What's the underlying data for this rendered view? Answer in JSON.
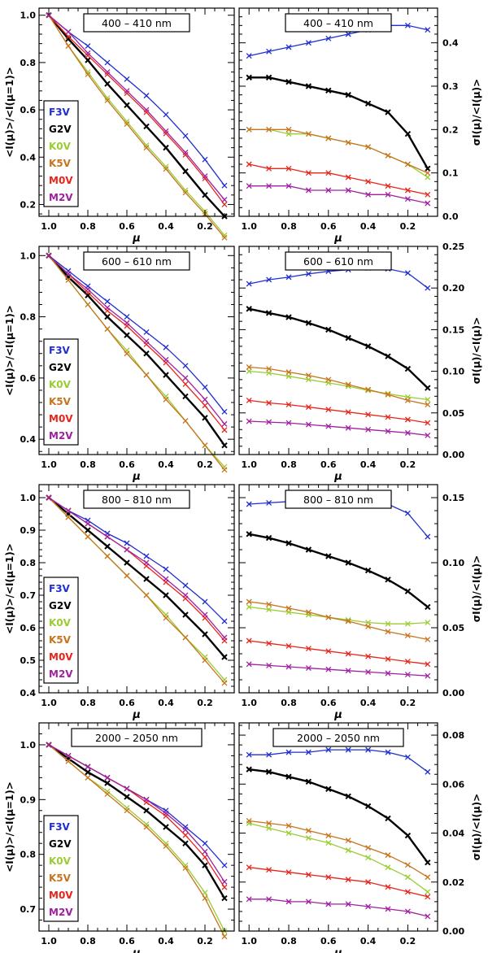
{
  "stars": [
    {
      "name": "F3V",
      "color": "#1f2fd0",
      "bold": false
    },
    {
      "name": "G2V",
      "color": "#000000",
      "bold": true
    },
    {
      "name": "K0V",
      "color": "#9acd32",
      "bold": false
    },
    {
      "name": "K5V",
      "color": "#c8741f",
      "bold": false
    },
    {
      "name": "M0V",
      "color": "#e8251a",
      "bold": false
    },
    {
      "name": "M2V",
      "color": "#a020a0",
      "bold": false
    }
  ],
  "mu_label": "μ",
  "left_ylabel": "<I(μ)>/<I(μ=1)>",
  "right_ylabel": "σI(μ)/<I(μ)>",
  "chart_data": [
    {
      "type": "line",
      "band": "400 – 410 nm",
      "panel": "mean-limb-darkening",
      "x": [
        1.0,
        0.9,
        0.8,
        0.7,
        0.6,
        0.5,
        0.4,
        0.3,
        0.2,
        0.1
      ],
      "xlim": [
        1.05,
        0.05
      ],
      "ylim": [
        0.15,
        1.03
      ],
      "xticks": [
        1.0,
        0.8,
        0.6,
        0.4,
        0.2
      ],
      "yticks": [
        0.2,
        0.4,
        0.6,
        0.8,
        1.0
      ],
      "series": [
        {
          "name": "F3V",
          "values": [
            1.0,
            0.93,
            0.87,
            0.8,
            0.73,
            0.66,
            0.58,
            0.49,
            0.39,
            0.28
          ]
        },
        {
          "name": "G2V",
          "values": [
            1.0,
            0.9,
            0.81,
            0.71,
            0.62,
            0.53,
            0.44,
            0.34,
            0.24,
            0.15
          ]
        },
        {
          "name": "K0V",
          "values": [
            1.0,
            0.87,
            0.76,
            0.65,
            0.55,
            0.45,
            0.36,
            0.26,
            0.17,
            0.07
          ]
        },
        {
          "name": "K5V",
          "values": [
            1.0,
            0.87,
            0.75,
            0.64,
            0.54,
            0.44,
            0.35,
            0.25,
            0.16,
            0.06
          ]
        },
        {
          "name": "M0V",
          "values": [
            1.0,
            0.91,
            0.83,
            0.75,
            0.67,
            0.59,
            0.5,
            0.41,
            0.31,
            0.2
          ]
        },
        {
          "name": "M2V",
          "values": [
            1.0,
            0.93,
            0.84,
            0.76,
            0.68,
            0.6,
            0.51,
            0.42,
            0.32,
            0.22
          ]
        }
      ]
    },
    {
      "type": "line",
      "band": "400 – 410 nm",
      "panel": "intensity-contrast",
      "x": [
        1.0,
        0.9,
        0.8,
        0.7,
        0.6,
        0.5,
        0.4,
        0.3,
        0.2,
        0.1
      ],
      "xlim": [
        1.05,
        0.05
      ],
      "ylim": [
        0.0,
        0.48
      ],
      "xticks": [
        1.0,
        0.8,
        0.6,
        0.4,
        0.2
      ],
      "yticks": [
        0.0,
        0.1,
        0.2,
        0.3,
        0.4
      ],
      "series": [
        {
          "name": "F3V",
          "values": [
            0.37,
            0.38,
            0.39,
            0.4,
            0.41,
            0.42,
            0.43,
            0.44,
            0.44,
            0.43
          ]
        },
        {
          "name": "G2V",
          "values": [
            0.32,
            0.32,
            0.31,
            0.3,
            0.29,
            0.28,
            0.26,
            0.24,
            0.19,
            0.11
          ]
        },
        {
          "name": "K0V",
          "values": [
            0.2,
            0.2,
            0.19,
            0.19,
            0.18,
            0.17,
            0.16,
            0.14,
            0.12,
            0.09
          ]
        },
        {
          "name": "K5V",
          "values": [
            0.2,
            0.2,
            0.2,
            0.19,
            0.18,
            0.17,
            0.16,
            0.14,
            0.12,
            0.1
          ]
        },
        {
          "name": "M0V",
          "values": [
            0.12,
            0.11,
            0.11,
            0.1,
            0.1,
            0.09,
            0.08,
            0.07,
            0.06,
            0.05
          ]
        },
        {
          "name": "M2V",
          "values": [
            0.07,
            0.07,
            0.07,
            0.06,
            0.06,
            0.06,
            0.05,
            0.05,
            0.04,
            0.03
          ]
        }
      ]
    },
    {
      "type": "line",
      "band": "600 – 610 nm",
      "panel": "mean-limb-darkening",
      "x": [
        1.0,
        0.9,
        0.8,
        0.7,
        0.6,
        0.5,
        0.4,
        0.3,
        0.2,
        0.1
      ],
      "xlim": [
        1.05,
        0.05
      ],
      "ylim": [
        0.35,
        1.03
      ],
      "xticks": [
        1.0,
        0.8,
        0.6,
        0.4,
        0.2
      ],
      "yticks": [
        0.4,
        0.6,
        0.8,
        1.0
      ],
      "series": [
        {
          "name": "F3V",
          "values": [
            1.0,
            0.95,
            0.9,
            0.85,
            0.8,
            0.75,
            0.7,
            0.64,
            0.57,
            0.49
          ]
        },
        {
          "name": "G2V",
          "values": [
            1.0,
            0.93,
            0.87,
            0.8,
            0.74,
            0.68,
            0.61,
            0.54,
            0.47,
            0.38
          ]
        },
        {
          "name": "K0V",
          "values": [
            1.0,
            0.92,
            0.84,
            0.76,
            0.69,
            0.61,
            0.54,
            0.46,
            0.38,
            0.31
          ]
        },
        {
          "name": "K5V",
          "values": [
            1.0,
            0.92,
            0.84,
            0.76,
            0.68,
            0.61,
            0.53,
            0.46,
            0.38,
            0.3
          ]
        },
        {
          "name": "M0V",
          "values": [
            1.0,
            0.94,
            0.88,
            0.82,
            0.77,
            0.71,
            0.65,
            0.58,
            0.51,
            0.43
          ]
        },
        {
          "name": "M2V",
          "values": [
            1.0,
            0.94,
            0.89,
            0.83,
            0.78,
            0.72,
            0.66,
            0.6,
            0.53,
            0.45
          ]
        }
      ]
    },
    {
      "type": "line",
      "band": "600 – 610 nm",
      "panel": "intensity-contrast",
      "x": [
        1.0,
        0.9,
        0.8,
        0.7,
        0.6,
        0.5,
        0.4,
        0.3,
        0.2,
        0.1
      ],
      "xlim": [
        1.05,
        0.05
      ],
      "ylim": [
        0.0,
        0.25
      ],
      "xticks": [
        1.0,
        0.8,
        0.6,
        0.4,
        0.2
      ],
      "yticks": [
        0.0,
        0.05,
        0.1,
        0.15,
        0.2,
        0.25
      ],
      "series": [
        {
          "name": "F3V",
          "values": [
            0.205,
            0.21,
            0.213,
            0.217,
            0.22,
            0.222,
            0.224,
            0.223,
            0.218,
            0.2
          ]
        },
        {
          "name": "G2V",
          "values": [
            0.175,
            0.17,
            0.165,
            0.158,
            0.15,
            0.14,
            0.13,
            0.118,
            0.103,
            0.08
          ]
        },
        {
          "name": "K0V",
          "values": [
            0.1,
            0.098,
            0.094,
            0.09,
            0.086,
            0.082,
            0.077,
            0.073,
            0.069,
            0.066
          ]
        },
        {
          "name": "K5V",
          "values": [
            0.105,
            0.103,
            0.099,
            0.095,
            0.09,
            0.084,
            0.078,
            0.072,
            0.065,
            0.06
          ]
        },
        {
          "name": "M0V",
          "values": [
            0.065,
            0.062,
            0.06,
            0.057,
            0.054,
            0.051,
            0.048,
            0.045,
            0.042,
            0.038
          ]
        },
        {
          "name": "M2V",
          "values": [
            0.04,
            0.039,
            0.038,
            0.036,
            0.034,
            0.032,
            0.03,
            0.028,
            0.026,
            0.023
          ]
        }
      ]
    },
    {
      "type": "line",
      "band": "800 – 810 nm",
      "panel": "mean-limb-darkening",
      "x": [
        1.0,
        0.9,
        0.8,
        0.7,
        0.6,
        0.5,
        0.4,
        0.3,
        0.2,
        0.1
      ],
      "xlim": [
        1.05,
        0.05
      ],
      "ylim": [
        0.4,
        1.04
      ],
      "xticks": [
        1.0,
        0.8,
        0.6,
        0.4,
        0.2
      ],
      "yticks": [
        0.4,
        0.5,
        0.6,
        0.7,
        0.8,
        0.9,
        1.0
      ],
      "series": [
        {
          "name": "F3V",
          "values": [
            1.0,
            0.96,
            0.93,
            0.89,
            0.86,
            0.82,
            0.78,
            0.73,
            0.68,
            0.62
          ]
        },
        {
          "name": "G2V",
          "values": [
            1.0,
            0.95,
            0.9,
            0.85,
            0.8,
            0.75,
            0.7,
            0.64,
            0.58,
            0.51
          ]
        },
        {
          "name": "K0V",
          "values": [
            1.0,
            0.94,
            0.88,
            0.82,
            0.76,
            0.7,
            0.64,
            0.57,
            0.51,
            0.44
          ]
        },
        {
          "name": "K5V",
          "values": [
            1.0,
            0.94,
            0.88,
            0.82,
            0.76,
            0.7,
            0.63,
            0.57,
            0.5,
            0.43
          ]
        },
        {
          "name": "M0V",
          "values": [
            1.0,
            0.96,
            0.92,
            0.88,
            0.84,
            0.79,
            0.74,
            0.69,
            0.63,
            0.56
          ]
        },
        {
          "name": "M2V",
          "values": [
            1.0,
            0.96,
            0.92,
            0.88,
            0.84,
            0.8,
            0.75,
            0.7,
            0.64,
            0.57
          ]
        }
      ]
    },
    {
      "type": "line",
      "band": "800 – 810 nm",
      "panel": "intensity-contrast",
      "x": [
        1.0,
        0.9,
        0.8,
        0.7,
        0.6,
        0.5,
        0.4,
        0.3,
        0.2,
        0.1
      ],
      "xlim": [
        1.05,
        0.05
      ],
      "ylim": [
        0.0,
        0.16
      ],
      "xticks": [
        1.0,
        0.8,
        0.6,
        0.4,
        0.2
      ],
      "yticks": [
        0.0,
        0.05,
        0.1,
        0.15
      ],
      "series": [
        {
          "name": "F3V",
          "values": [
            0.145,
            0.146,
            0.147,
            0.148,
            0.149,
            0.149,
            0.148,
            0.145,
            0.138,
            0.12
          ]
        },
        {
          "name": "G2V",
          "values": [
            0.122,
            0.119,
            0.115,
            0.11,
            0.105,
            0.1,
            0.094,
            0.087,
            0.078,
            0.066
          ]
        },
        {
          "name": "K0V",
          "values": [
            0.066,
            0.064,
            0.062,
            0.06,
            0.058,
            0.056,
            0.054,
            0.053,
            0.053,
            0.054
          ]
        },
        {
          "name": "K5V",
          "values": [
            0.07,
            0.068,
            0.065,
            0.062,
            0.058,
            0.055,
            0.051,
            0.047,
            0.044,
            0.041
          ]
        },
        {
          "name": "M0V",
          "values": [
            0.04,
            0.038,
            0.036,
            0.034,
            0.032,
            0.03,
            0.028,
            0.026,
            0.024,
            0.022
          ]
        },
        {
          "name": "M2V",
          "values": [
            0.022,
            0.021,
            0.02,
            0.019,
            0.018,
            0.017,
            0.016,
            0.015,
            0.014,
            0.013
          ]
        }
      ]
    },
    {
      "type": "line",
      "band": "2000 – 2050 nm",
      "panel": "mean-limb-darkening",
      "x": [
        1.0,
        0.9,
        0.8,
        0.7,
        0.6,
        0.5,
        0.4,
        0.3,
        0.2,
        0.1
      ],
      "xlim": [
        1.05,
        0.05
      ],
      "ylim": [
        0.66,
        1.04
      ],
      "xticks": [
        1.0,
        0.8,
        0.6,
        0.4,
        0.2
      ],
      "yticks": [
        0.7,
        0.8,
        0.9,
        1.0
      ],
      "series": [
        {
          "name": "F3V",
          "values": [
            1.0,
            0.98,
            0.96,
            0.94,
            0.92,
            0.9,
            0.88,
            0.85,
            0.82,
            0.78
          ]
        },
        {
          "name": "G2V",
          "values": [
            1.0,
            0.975,
            0.95,
            0.93,
            0.905,
            0.88,
            0.85,
            0.82,
            0.78,
            0.72
          ]
        },
        {
          "name": "K0V",
          "values": [
            1.0,
            0.97,
            0.94,
            0.915,
            0.885,
            0.855,
            0.82,
            0.78,
            0.73,
            0.66
          ]
        },
        {
          "name": "K5V",
          "values": [
            1.0,
            0.97,
            0.94,
            0.91,
            0.88,
            0.85,
            0.815,
            0.775,
            0.72,
            0.65
          ]
        },
        {
          "name": "M0V",
          "values": [
            1.0,
            0.98,
            0.96,
            0.94,
            0.92,
            0.895,
            0.87,
            0.835,
            0.795,
            0.74
          ]
        },
        {
          "name": "M2V",
          "values": [
            1.0,
            0.98,
            0.96,
            0.94,
            0.92,
            0.9,
            0.875,
            0.845,
            0.805,
            0.75
          ]
        }
      ]
    },
    {
      "type": "line",
      "band": "2000 – 2050 nm",
      "panel": "intensity-contrast",
      "x": [
        1.0,
        0.9,
        0.8,
        0.7,
        0.6,
        0.5,
        0.4,
        0.3,
        0.2,
        0.1
      ],
      "xlim": [
        1.05,
        0.05
      ],
      "ylim": [
        0.0,
        0.085
      ],
      "xticks": [
        1.0,
        0.8,
        0.6,
        0.4,
        0.2
      ],
      "yticks": [
        0.0,
        0.02,
        0.04,
        0.06,
        0.08
      ],
      "series": [
        {
          "name": "F3V",
          "values": [
            0.072,
            0.072,
            0.073,
            0.073,
            0.074,
            0.074,
            0.074,
            0.073,
            0.071,
            0.065
          ]
        },
        {
          "name": "G2V",
          "values": [
            0.066,
            0.065,
            0.063,
            0.061,
            0.058,
            0.055,
            0.051,
            0.046,
            0.039,
            0.028
          ]
        },
        {
          "name": "K0V",
          "values": [
            0.044,
            0.042,
            0.04,
            0.038,
            0.036,
            0.033,
            0.03,
            0.026,
            0.022,
            0.016
          ]
        },
        {
          "name": "K5V",
          "values": [
            0.045,
            0.044,
            0.043,
            0.041,
            0.039,
            0.037,
            0.034,
            0.031,
            0.027,
            0.022
          ]
        },
        {
          "name": "M0V",
          "values": [
            0.026,
            0.025,
            0.024,
            0.023,
            0.022,
            0.021,
            0.02,
            0.018,
            0.016,
            0.014
          ]
        },
        {
          "name": "M2V",
          "values": [
            0.013,
            0.013,
            0.012,
            0.012,
            0.011,
            0.011,
            0.01,
            0.009,
            0.008,
            0.006
          ]
        }
      ]
    }
  ]
}
